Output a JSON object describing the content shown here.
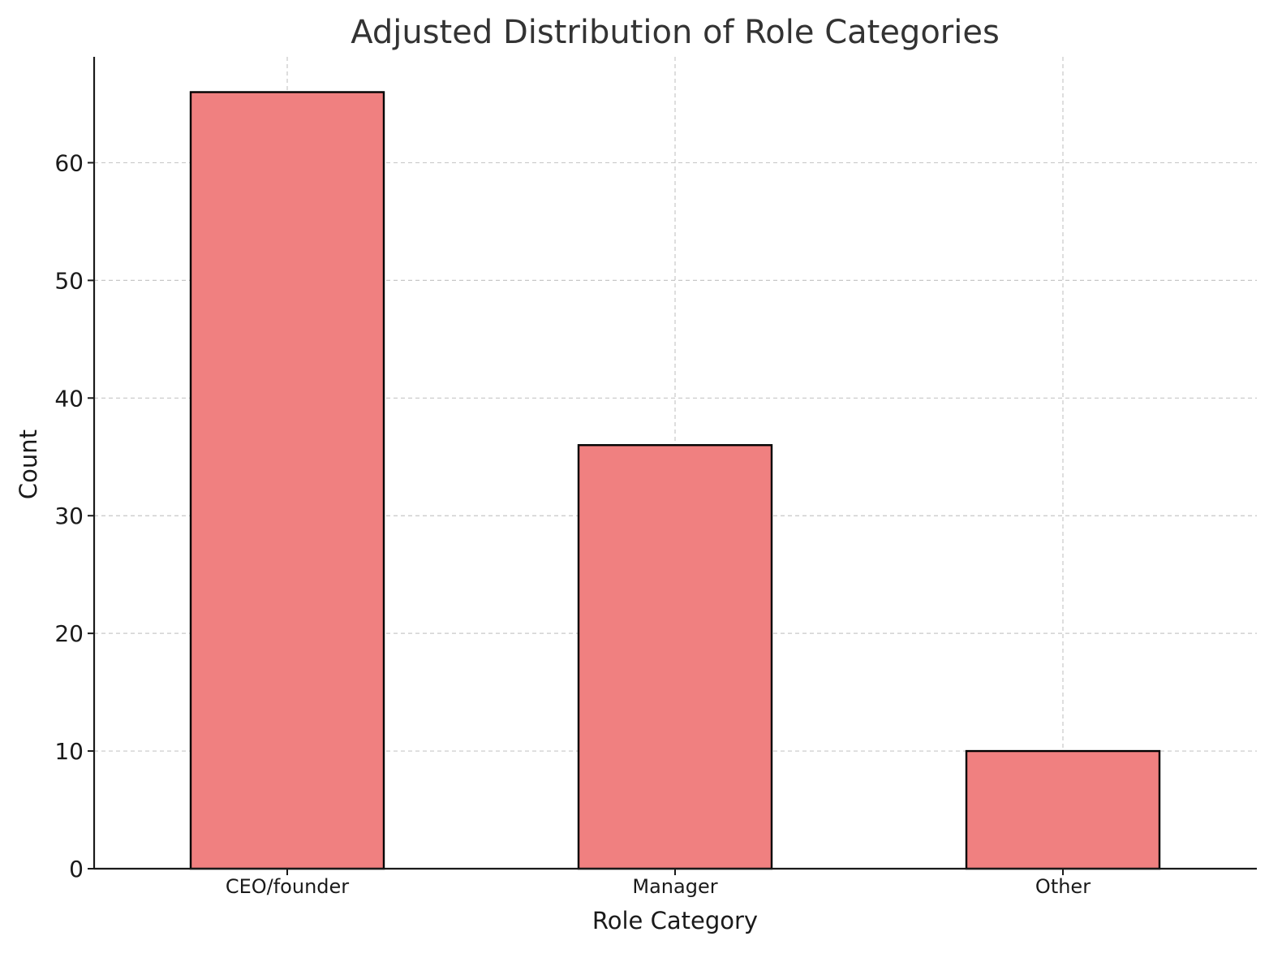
{
  "chart_data": {
    "type": "bar",
    "title": "Adjusted Distribution of Role Categories",
    "xlabel": "Role Category",
    "ylabel": "Count",
    "categories": [
      "CEO/founder",
      "Manager",
      "Other"
    ],
    "values": [
      66,
      36,
      10
    ],
    "ylim": [
      0,
      69
    ],
    "yticks": [
      "0",
      "10",
      "20",
      "30",
      "40",
      "50",
      "60"
    ],
    "grid": true,
    "bar_color": "#f08080",
    "bar_edge_color": "#000000",
    "grid_color": "#c8c8c8"
  }
}
